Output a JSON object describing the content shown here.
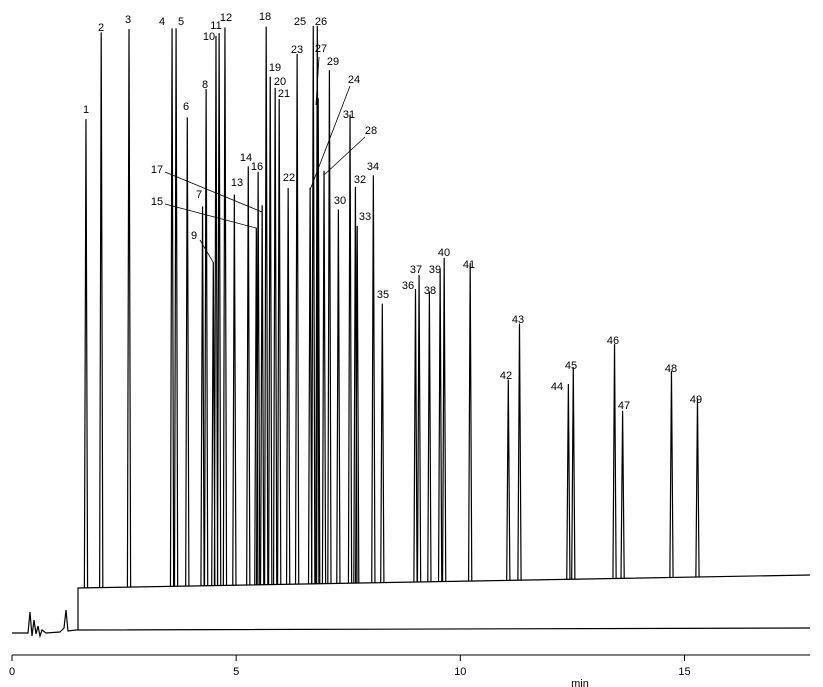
{
  "chart_data": {
    "type": "chromatogram",
    "xlabel": "min",
    "xlim": [
      0,
      17.8
    ],
    "xticks": [
      0,
      5,
      10,
      15
    ],
    "ylim": [
      0,
      100
    ],
    "color": "#000000",
    "categories": [
      "1",
      "2",
      "3",
      "4",
      "5",
      "6",
      "7",
      "8",
      "9",
      "10",
      "11",
      "12",
      "13",
      "14",
      "15",
      "16",
      "17",
      "18",
      "19",
      "20",
      "21",
      "22",
      "23",
      "24",
      "25",
      "26",
      "27",
      "28",
      "29",
      "30",
      "31",
      "32",
      "33",
      "34",
      "35",
      "36",
      "37",
      "38",
      "39",
      "40",
      "41",
      "42",
      "43",
      "44",
      "45",
      "46",
      "47",
      "48",
      "49"
    ],
    "x": [
      1.65,
      1.99,
      2.61,
      3.57,
      3.66,
      3.91,
      4.25,
      4.33,
      4.49,
      4.55,
      4.62,
      4.75,
      4.96,
      5.27,
      5.45,
      5.49,
      5.58,
      5.67,
      5.76,
      5.87,
      5.96,
      6.16,
      6.36,
      6.65,
      6.72,
      6.81,
      6.83,
      6.96,
      7.08,
      7.28,
      7.54,
      7.66,
      7.7,
      8.06,
      8.26,
      9.0,
      9.08,
      9.31,
      9.55,
      9.64,
      10.22,
      11.07,
      11.32,
      12.41,
      12.52,
      13.44,
      13.62,
      14.71,
      15.29
    ],
    "values": [
      84,
      99.5,
      100,
      100,
      100,
      84,
      68,
      89,
      58,
      98.5,
      99,
      100,
      70,
      75,
      64,
      74,
      68,
      100,
      91,
      89,
      87,
      71,
      95,
      71,
      100,
      100,
      87,
      74,
      92,
      67,
      84,
      71,
      64,
      73,
      50,
      52.5,
      55,
      52,
      56,
      58,
      57,
      36,
      46,
      35,
      38,
      42,
      30,
      37,
      32
    ]
  }
}
